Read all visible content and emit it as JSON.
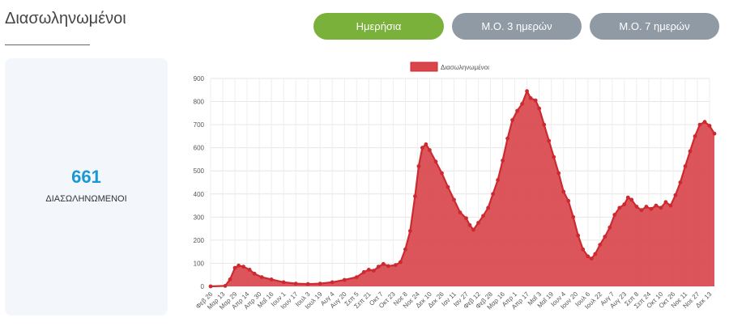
{
  "page": {
    "title": "Διασωληνωμένοι"
  },
  "toggles": [
    {
      "label": "Ημερήσια",
      "active": true
    },
    {
      "label": "Μ.Ο. 3 ημερών",
      "active": false
    },
    {
      "label": "Μ.Ο. 7 ημερών",
      "active": false
    }
  ],
  "stat": {
    "value": "661",
    "label": "ΔΙΑΣΩΛΗΝΩΜΕΝΟΙ"
  },
  "colors": {
    "accent_green": "#7ab13a",
    "inactive_gray": "#8f9aa4",
    "stat_blue": "#1a98d4",
    "series_fill": "#d9464c",
    "series_line": "#cc2a30"
  },
  "chart_data": {
    "type": "area",
    "legend": "Διασωληνωμένοι",
    "legend_position": "top",
    "grid": true,
    "ylim": [
      0,
      900
    ],
    "yticks": [
      0,
      100,
      200,
      300,
      400,
      500,
      600,
      700,
      800,
      900
    ],
    "xlabels": [
      "Φεβ 26",
      "Μαρ 13",
      "Μαρ 29",
      "Απρ 14",
      "Απρ 30",
      "Μαΐ 16",
      "Ιουν 1",
      "Ιουν 17",
      "Ιουλ 3",
      "Ιουλ 19",
      "Αυγ 4",
      "Αυγ 20",
      "Σεπ 5",
      "Σεπ 21",
      "Οκτ 7",
      "Οκτ 23",
      "Νοε 8",
      "Νοε 24",
      "Δεκ 10",
      "Δεκ 26",
      "Ιαν 11",
      "Ιαν 27",
      "Φεβ 12",
      "Φεβ 28",
      "Μαρ 16",
      "Απρ 1",
      "Απρ 17",
      "Μαΐ 3",
      "Μαΐ 19",
      "Ιουν 4",
      "Ιουν 20",
      "Ιουλ 6",
      "Ιουλ 22",
      "Αυγ 7",
      "Αυγ 23",
      "Σεπ 8",
      "Σεπ 24",
      "Οκτ 10",
      "Οκτ 26",
      "Νοε 11",
      "Νοε 27",
      "Δεκ 13"
    ],
    "series": [
      {
        "name": "Διασωληνωμένοι",
        "points": [
          [
            0,
            0
          ],
          [
            1.2,
            2
          ],
          [
            1.6,
            30
          ],
          [
            2.0,
            80
          ],
          [
            2.3,
            90
          ],
          [
            2.7,
            85
          ],
          [
            3.2,
            72
          ],
          [
            3.6,
            55
          ],
          [
            4.2,
            40
          ],
          [
            5.0,
            30
          ],
          [
            6.0,
            18
          ],
          [
            7.0,
            12
          ],
          [
            8.0,
            10
          ],
          [
            9.0,
            12
          ],
          [
            10.0,
            18
          ],
          [
            11.0,
            28
          ],
          [
            12.0,
            40
          ],
          [
            12.6,
            62
          ],
          [
            13.0,
            72
          ],
          [
            13.4,
            68
          ],
          [
            13.8,
            85
          ],
          [
            14.2,
            97
          ],
          [
            14.6,
            88
          ],
          [
            15.2,
            92
          ],
          [
            15.6,
            105
          ],
          [
            16.0,
            160
          ],
          [
            16.4,
            240
          ],
          [
            16.8,
            390
          ],
          [
            17.1,
            520
          ],
          [
            17.4,
            600
          ],
          [
            17.7,
            615
          ],
          [
            18.0,
            590
          ],
          [
            18.5,
            540
          ],
          [
            19.0,
            490
          ],
          [
            19.5,
            430
          ],
          [
            20.0,
            375
          ],
          [
            20.5,
            320
          ],
          [
            21.0,
            295
          ],
          [
            21.3,
            265
          ],
          [
            21.6,
            245
          ],
          [
            22.0,
            275
          ],
          [
            22.4,
            305
          ],
          [
            22.8,
            340
          ],
          [
            23.2,
            400
          ],
          [
            23.6,
            460
          ],
          [
            24.0,
            545
          ],
          [
            24.4,
            640
          ],
          [
            24.8,
            720
          ],
          [
            25.2,
            760
          ],
          [
            25.6,
            790
          ],
          [
            26.0,
            845
          ],
          [
            26.3,
            815
          ],
          [
            26.7,
            805
          ],
          [
            27.0,
            770
          ],
          [
            27.4,
            700
          ],
          [
            27.8,
            630
          ],
          [
            28.2,
            560
          ],
          [
            28.6,
            490
          ],
          [
            29.0,
            410
          ],
          [
            29.4,
            370
          ],
          [
            29.8,
            300
          ],
          [
            30.2,
            220
          ],
          [
            30.6,
            160
          ],
          [
            31.0,
            130
          ],
          [
            31.3,
            120
          ],
          [
            31.6,
            140
          ],
          [
            32.0,
            180
          ],
          [
            32.4,
            215
          ],
          [
            32.8,
            255
          ],
          [
            33.2,
            310
          ],
          [
            33.6,
            340
          ],
          [
            34.0,
            355
          ],
          [
            34.3,
            385
          ],
          [
            34.6,
            375
          ],
          [
            35.0,
            345
          ],
          [
            35.4,
            330
          ],
          [
            35.8,
            345
          ],
          [
            36.2,
            335
          ],
          [
            36.6,
            350
          ],
          [
            37.0,
            340
          ],
          [
            37.4,
            365
          ],
          [
            37.8,
            350
          ],
          [
            38.2,
            395
          ],
          [
            38.6,
            450
          ],
          [
            39.0,
            520
          ],
          [
            39.4,
            585
          ],
          [
            39.8,
            650
          ],
          [
            40.2,
            700
          ],
          [
            40.6,
            712
          ],
          [
            41.0,
            695
          ],
          [
            41.4,
            661
          ]
        ]
      }
    ]
  }
}
